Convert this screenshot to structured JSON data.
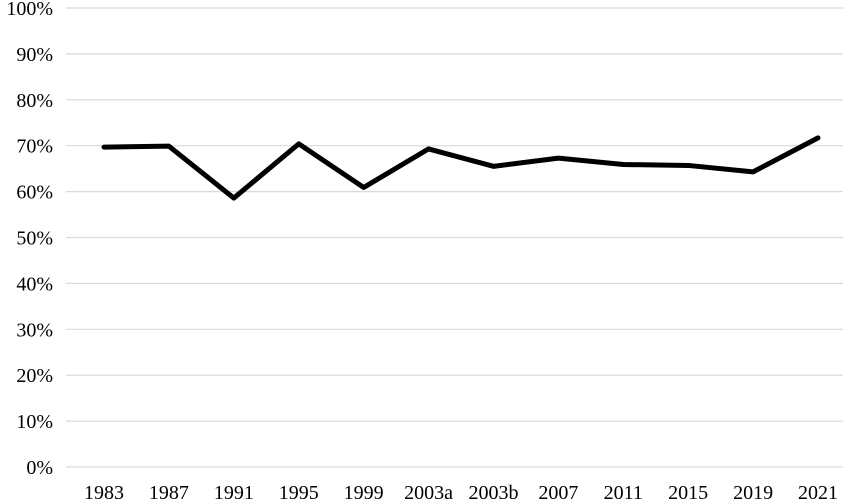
{
  "chart_data": {
    "type": "line",
    "categories": [
      "1983",
      "1987",
      "1991",
      "1995",
      "1999",
      "2003a",
      "2003b",
      "2007",
      "2011",
      "2015",
      "2019",
      "2021"
    ],
    "series": [
      {
        "values": [
          69.7,
          69.9,
          58.6,
          70.4,
          60.9,
          69.3,
          65.5,
          67.3,
          65.9,
          65.7,
          64.3,
          71.7
        ],
        "color": "#000000"
      }
    ],
    "y_ticks": [
      "0%",
      "10%",
      "20%",
      "30%",
      "40%",
      "50%",
      "60%",
      "70%",
      "80%",
      "90%",
      "100%"
    ],
    "ylim": [
      0,
      100
    ],
    "grid": true,
    "legend": "none",
    "title": "",
    "xlabel": "",
    "ylabel": ""
  }
}
